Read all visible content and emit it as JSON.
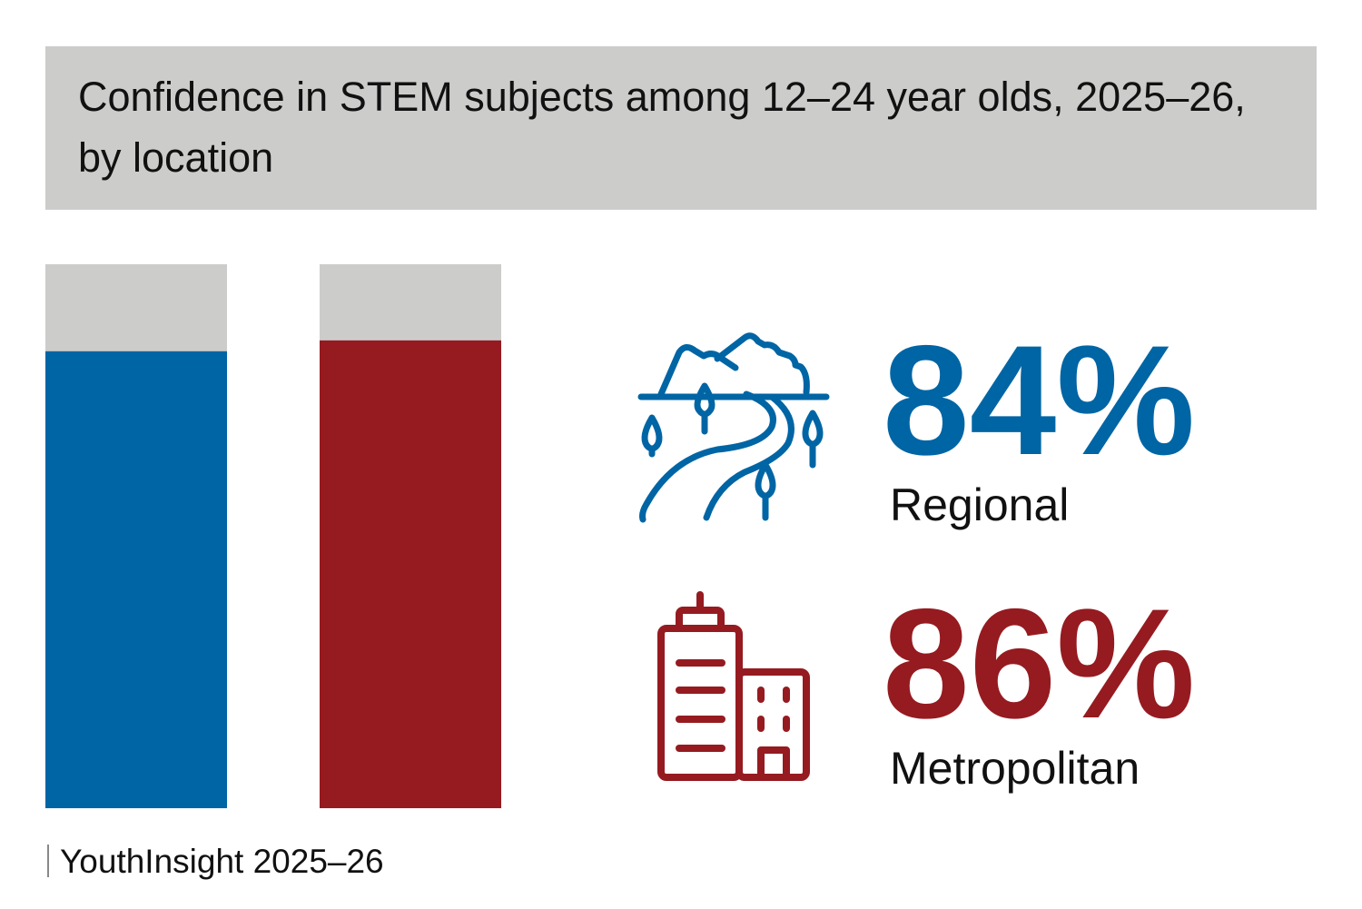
{
  "chart_data": {
    "type": "bar",
    "title": "Confidence in STEM subjects among 12–24 year olds, 2025–26, by location",
    "categories": [
      "Regional",
      "Metropolitan"
    ],
    "values": [
      84,
      86
    ],
    "value_labels": [
      "84%",
      "86%"
    ],
    "colors": [
      "#0065a4",
      "#951b20"
    ],
    "ylim": [
      0,
      100
    ],
    "source": "YouthInsight 2025–26"
  }
}
